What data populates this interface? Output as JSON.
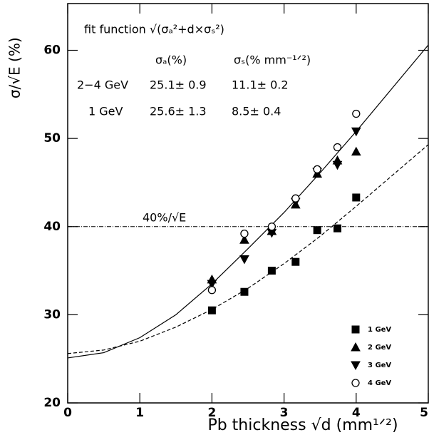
{
  "chart_data": {
    "type": "scatter",
    "x_label": "Pb thickness √d (mm¹ᐟ²)",
    "y_label": "σ/√E (%)",
    "xlim": [
      0,
      5
    ],
    "ylim": [
      20,
      65.3
    ],
    "xticks": [
      0,
      1,
      2,
      3,
      4,
      5
    ],
    "yticks": [
      20,
      30,
      40,
      50,
      60
    ],
    "legend_position": "lower right",
    "series": [
      {
        "name": "1 GeV",
        "marker": "square",
        "color": "#000000",
        "x": [
          2,
          2.45,
          2.83,
          3.16,
          3.46,
          3.74,
          4
        ],
        "values": [
          30.5,
          32.6,
          35,
          36,
          39.6,
          39.8,
          43.3
        ]
      },
      {
        "name": "2 GeV",
        "marker": "triangle-up",
        "color": "#000000",
        "x": [
          2,
          2.45,
          2.83,
          3.16,
          3.46,
          3.74,
          4
        ],
        "values": [
          34,
          38.5,
          39.5,
          42.5,
          46,
          47.5,
          48.5
        ]
      },
      {
        "name": "3 GeV",
        "marker": "triangle-down",
        "color": "#000000",
        "x": [
          2,
          2.45,
          2.83,
          3.16,
          3.46,
          3.74,
          4
        ],
        "values": [
          33.5,
          36.3,
          39.3,
          42.8,
          46.2,
          47,
          50.8
        ]
      },
      {
        "name": "4 GeV",
        "marker": "open-circle",
        "color": "#000000",
        "x": [
          2,
          2.45,
          2.83,
          3.16,
          3.46,
          3.74,
          4
        ],
        "values": [
          32.8,
          39.2,
          40,
          43.2,
          46.5,
          49,
          52.8
        ]
      }
    ],
    "curves": [
      {
        "style": "solid",
        "x": [
          0,
          0.5,
          1,
          1.5,
          2,
          2.5,
          3,
          3.5,
          4,
          4.5,
          5
        ],
        "values": [
          25.1,
          25.7,
          27.4,
          30,
          33.5,
          37.5,
          41.6,
          46.1,
          50.8,
          55.7,
          60.6
        ]
      },
      {
        "style": "dashed",
        "x": [
          0,
          0.5,
          1,
          1.5,
          2,
          2.5,
          3,
          3.5,
          4,
          4.5,
          5
        ],
        "values": [
          25.6,
          26,
          27,
          28.6,
          30.6,
          33,
          35.8,
          38.9,
          42.3,
          45.8,
          49.3
        ]
      }
    ],
    "reference_line": {
      "value": 40,
      "label": "40%/√E"
    },
    "fit_box": {
      "title": "fit function √(σₐ²+d×σₛ²)",
      "headers": [
        "σₐ(%)",
        "σₛ(% mm⁻¹ᐟ²)"
      ],
      "rows": [
        [
          "2−4 GeV",
          "25.1± 0.9",
          "11.1± 0.2"
        ],
        [
          "1 GeV",
          "25.6± 1.3",
          "8.5± 0.4"
        ]
      ]
    }
  }
}
